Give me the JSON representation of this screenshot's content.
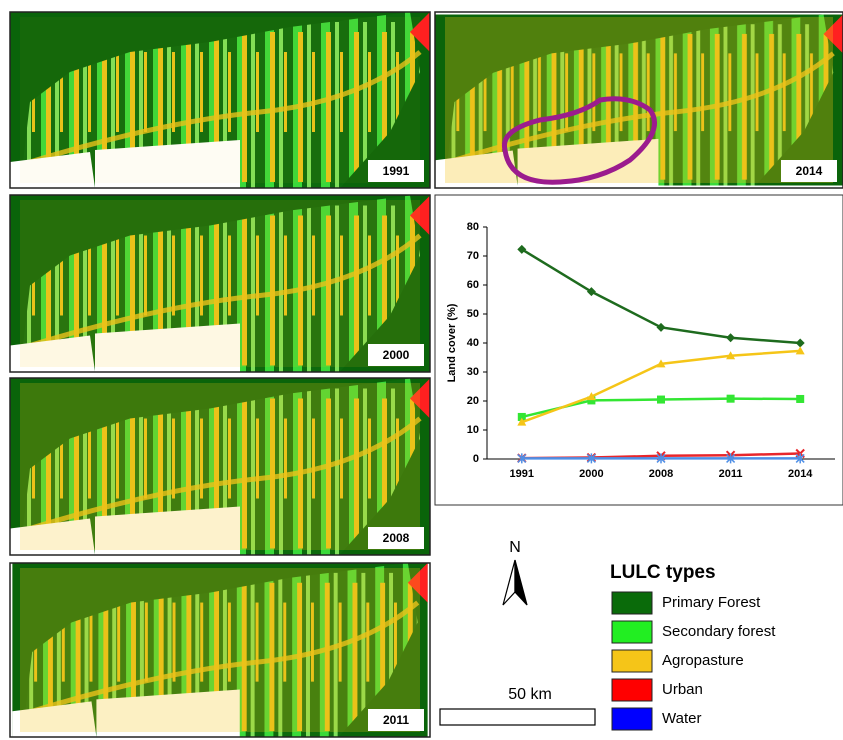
{
  "chart_data": {
    "type": "line",
    "ylabel": "Land cover (%)",
    "categories": [
      "1991",
      "2000",
      "2008",
      "2011",
      "2014"
    ],
    "ylim": [
      0,
      80
    ],
    "yticks": [
      0,
      10,
      20,
      30,
      40,
      50,
      60,
      70,
      80
    ],
    "series": [
      {
        "name": "Primary Forest",
        "color": "#1e6b1e",
        "marker": "diamond",
        "values": [
          72.3,
          57.7,
          45.4,
          41.8,
          40.0
        ]
      },
      {
        "name": "Secondary forest",
        "color": "#33e633",
        "marker": "square",
        "values": [
          14.5,
          20.2,
          20.5,
          20.8,
          20.7
        ]
      },
      {
        "name": "Agropasture",
        "color": "#f5c518",
        "marker": "triangle",
        "values": [
          12.7,
          21.5,
          32.8,
          35.6,
          37.3
        ]
      },
      {
        "name": "Urban",
        "color": "#e8262b",
        "marker": "x",
        "values": [
          0.3,
          0.5,
          1.1,
          1.3,
          1.9
        ]
      },
      {
        "name": "Water",
        "color": "#4f8fe6",
        "marker": "star",
        "values": [
          0.2,
          0.2,
          0.2,
          0.2,
          0.2
        ]
      }
    ],
    "legend_colors": [
      "#0a6b0a",
      "#22ee22",
      "#f5c518",
      "#ff0000",
      "#0000ff"
    ]
  },
  "legend_title": "LULC types",
  "maps": [
    {
      "label": "1991"
    },
    {
      "label": "2014"
    },
    {
      "label": "2000"
    },
    {
      "label": "2008"
    },
    {
      "label": "2011"
    }
  ],
  "scale_bar": "50 km",
  "north": "N"
}
